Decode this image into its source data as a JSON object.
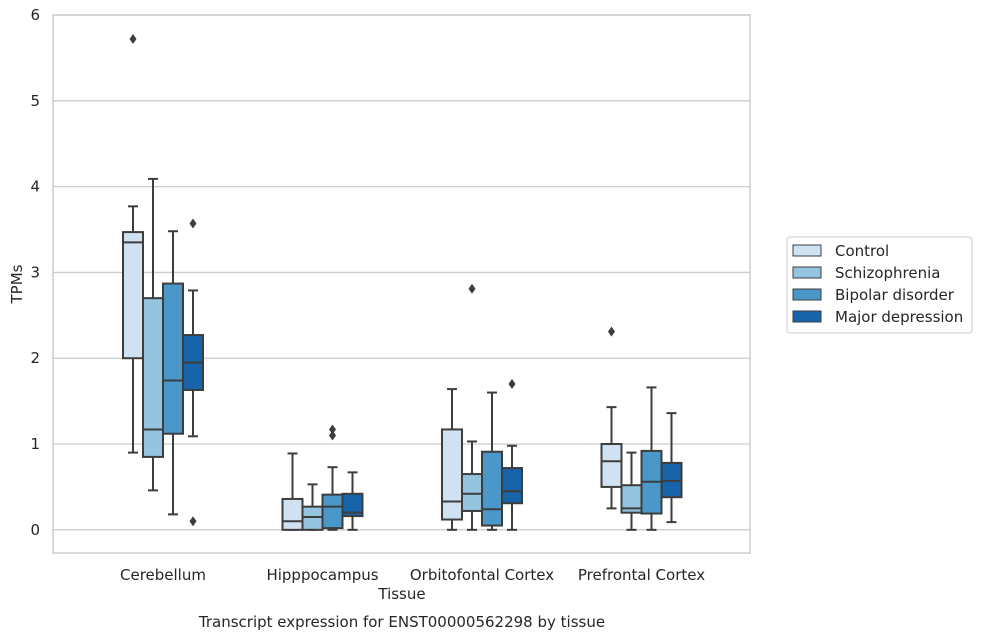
{
  "chart_data": {
    "type": "box",
    "caption": "Transcript expression for ENST00000562298 by tissue",
    "xlabel": "Tissue",
    "ylabel": "TPMs",
    "ylim": [
      -0.27,
      6
    ],
    "yticks": [
      0,
      1,
      2,
      3,
      4,
      5,
      6
    ],
    "grid": true,
    "legend_position": "right",
    "categories": [
      "Cerebellum",
      "Hipppocampus",
      "Orbitofontal Cortex",
      "Prefrontal Cortex"
    ],
    "series": [
      {
        "name": "Control",
        "color": "#d0e1f2",
        "boxes": [
          {
            "whislo": 0.9,
            "q1": 2.0,
            "med": 3.35,
            "q3": 3.47,
            "whishi": 3.77,
            "fliers": [
              5.72
            ]
          },
          {
            "whislo": 0.0,
            "q1": 0.0,
            "med": 0.1,
            "q3": 0.36,
            "whishi": 0.89,
            "fliers": []
          },
          {
            "whislo": 0.0,
            "q1": 0.12,
            "med": 0.33,
            "q3": 1.17,
            "whishi": 1.64,
            "fliers": []
          },
          {
            "whislo": 0.25,
            "q1": 0.5,
            "med": 0.8,
            "q3": 1.0,
            "whishi": 1.43,
            "fliers": [
              2.31
            ]
          }
        ]
      },
      {
        "name": "Schizophrenia",
        "color": "#94c4df",
        "boxes": [
          {
            "whislo": 0.46,
            "q1": 0.85,
            "med": 1.17,
            "q3": 2.7,
            "whishi": 4.09,
            "fliers": []
          },
          {
            "whislo": 0.0,
            "q1": 0.0,
            "med": 0.15,
            "q3": 0.27,
            "whishi": 0.53,
            "fliers": []
          },
          {
            "whislo": 0.0,
            "q1": 0.22,
            "med": 0.42,
            "q3": 0.65,
            "whishi": 1.03,
            "fliers": [
              2.81
            ]
          },
          {
            "whislo": 0.0,
            "q1": 0.2,
            "med": 0.25,
            "q3": 0.52,
            "whishi": 0.9,
            "fliers": []
          }
        ]
      },
      {
        "name": "Bipolar disorder",
        "color": "#4a98c9",
        "boxes": [
          {
            "whislo": 0.18,
            "q1": 1.12,
            "med": 1.74,
            "q3": 2.87,
            "whishi": 3.48,
            "fliers": []
          },
          {
            "whislo": 0.0,
            "q1": 0.02,
            "med": 0.27,
            "q3": 0.41,
            "whishi": 0.73,
            "fliers": [
              1.1,
              1.17
            ]
          },
          {
            "whislo": 0.0,
            "q1": 0.05,
            "med": 0.24,
            "q3": 0.91,
            "whishi": 1.6,
            "fliers": []
          },
          {
            "whislo": 0.0,
            "q1": 0.19,
            "med": 0.56,
            "q3": 0.92,
            "whishi": 1.66,
            "fliers": []
          }
        ]
      },
      {
        "name": "Major depression",
        "color": "#1764ab",
        "boxes": [
          {
            "whislo": 1.09,
            "q1": 1.63,
            "med": 1.95,
            "q3": 2.27,
            "whishi": 2.79,
            "fliers": [
              3.57,
              0.1
            ]
          },
          {
            "whislo": 0.0,
            "q1": 0.16,
            "med": 0.2,
            "q3": 0.42,
            "whishi": 0.67,
            "fliers": []
          },
          {
            "whislo": 0.0,
            "q1": 0.31,
            "med": 0.45,
            "q3": 0.72,
            "whishi": 0.98,
            "fliers": [
              1.7
            ]
          },
          {
            "whislo": 0.09,
            "q1": 0.38,
            "med": 0.57,
            "q3": 0.78,
            "whishi": 1.36,
            "fliers": []
          }
        ]
      }
    ]
  }
}
